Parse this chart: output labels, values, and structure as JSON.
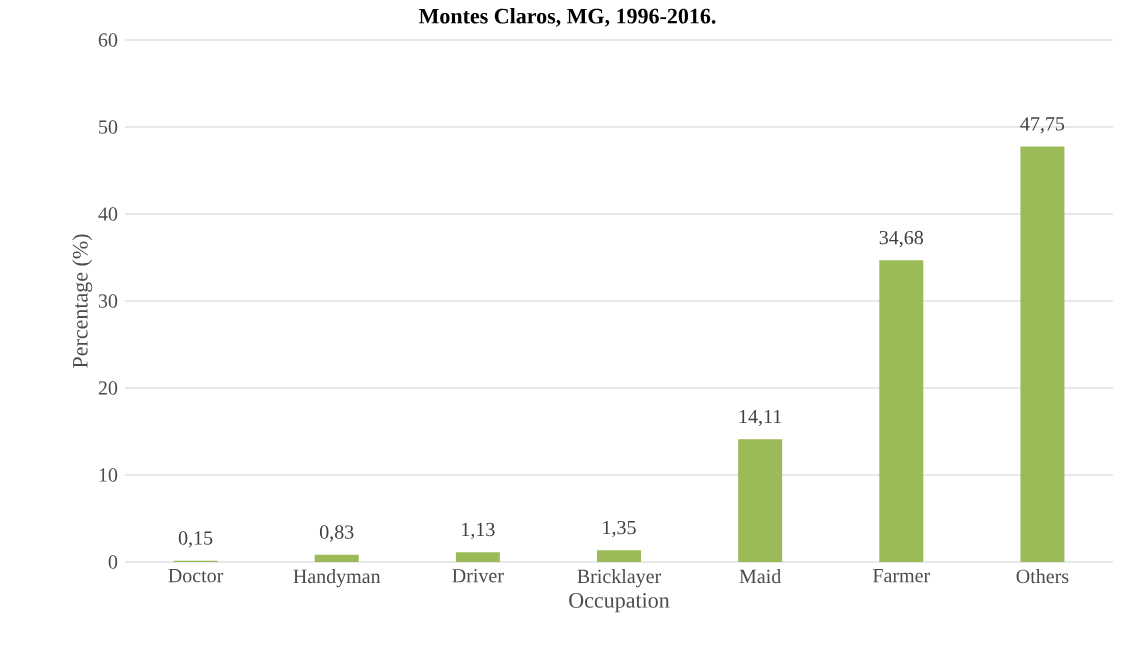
{
  "chart_data": {
    "type": "bar",
    "title": "Montes Claros, MG, 1996-2016.",
    "xlabel": "Occupation",
    "ylabel": "Percentage (%)",
    "categories": [
      "Doctor",
      "Handyman",
      "Driver",
      "Bricklayer",
      "Maid",
      "Farmer",
      "Others"
    ],
    "values": [
      0.15,
      0.83,
      1.13,
      1.35,
      14.11,
      34.68,
      47.75
    ],
    "value_labels": [
      "0,15",
      "0,83",
      "1,13",
      "1,35",
      "14,11",
      "34,68",
      "47,75"
    ],
    "color": "#9bbb59",
    "ylim": [
      0,
      60
    ],
    "yticks": [
      0,
      10,
      20,
      30,
      40,
      50,
      60
    ],
    "grid": "y"
  }
}
